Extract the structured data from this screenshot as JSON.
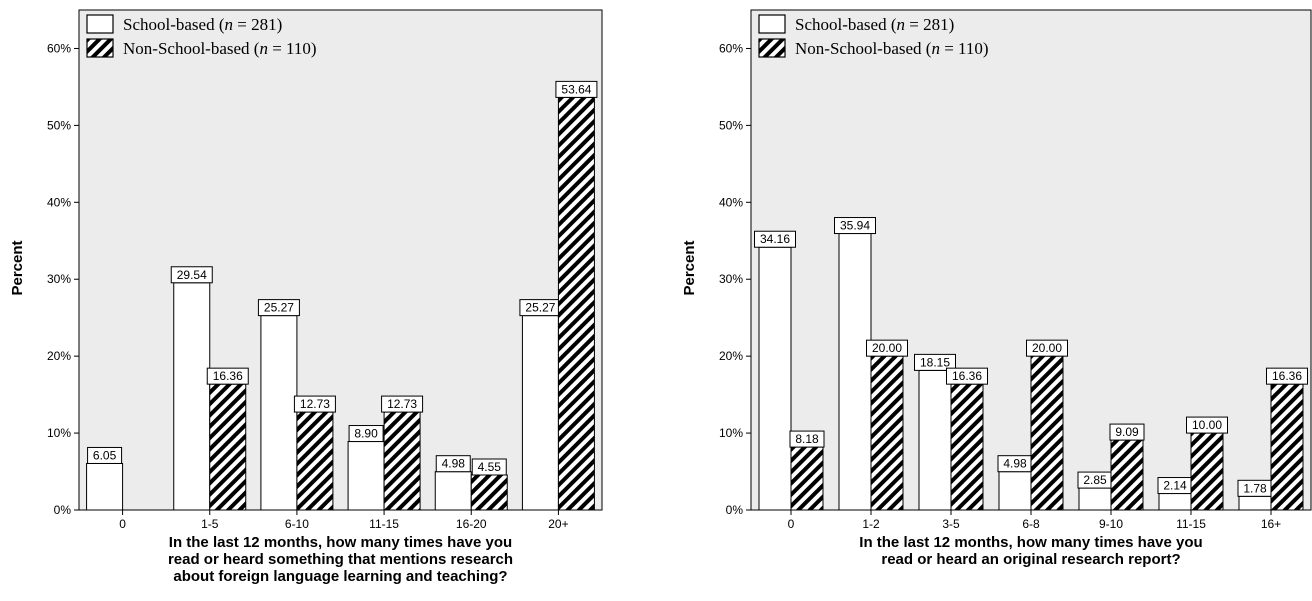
{
  "colors": {
    "plot_bg": "#ececec",
    "bar_fill": "#ffffff",
    "stroke": "#000000"
  },
  "chart_data": [
    {
      "type": "bar",
      "ylabel": "Percent",
      "xlabel": [
        "In the last 12 months, how many times have you",
        "read or heard something that mentions research",
        "about foreign language learning and teaching?"
      ],
      "ylim": [
        0,
        65
      ],
      "yticks": [
        "0%",
        "10%",
        "20%",
        "30%",
        "40%",
        "50%",
        "60%"
      ],
      "grid": false,
      "legend_position": "top-left",
      "categories": [
        "0",
        "1-5",
        "6-10",
        "11-15",
        "16-20",
        "20+"
      ],
      "series": [
        {
          "name": "School-based",
          "n_label": "n",
          "n_value": "= 281)",
          "pattern": "open",
          "values": [
            6.05,
            29.54,
            25.27,
            8.9,
            4.98,
            25.27
          ],
          "labels": [
            "6.05",
            "29.54",
            "25.27",
            "8.90",
            "4.98",
            "25.27"
          ]
        },
        {
          "name": "Non-School-based",
          "n_label": "n",
          "n_value": "= 110)",
          "pattern": "hatched",
          "values": [
            null,
            16.36,
            12.73,
            12.73,
            4.55,
            53.64
          ],
          "labels": [
            null,
            "16.36",
            "12.73",
            "12.73",
            "4.55",
            "53.64"
          ]
        }
      ]
    },
    {
      "type": "bar",
      "ylabel": "Percent",
      "xlabel": [
        "In the last 12 months, how many times have you",
        "read or heard an original research report?"
      ],
      "ylim": [
        0,
        65
      ],
      "yticks": [
        "0%",
        "10%",
        "20%",
        "30%",
        "40%",
        "50%",
        "60%"
      ],
      "grid": false,
      "legend_position": "top-left",
      "categories": [
        "0",
        "1-2",
        "3-5",
        "6-8",
        "9-10",
        "11-15",
        "16+"
      ],
      "series": [
        {
          "name": "School-based",
          "n_label": "n",
          "n_value": "= 281)",
          "pattern": "open",
          "values": [
            34.16,
            35.94,
            18.15,
            4.98,
            2.85,
            2.14,
            1.78
          ],
          "labels": [
            "34.16",
            "35.94",
            "18.15",
            "4.98",
            "2.85",
            "2.14",
            "1.78"
          ]
        },
        {
          "name": "Non-School-based",
          "n_label": "n",
          "n_value": "= 110)",
          "pattern": "hatched",
          "values": [
            8.18,
            20.0,
            16.36,
            20.0,
            9.09,
            10.0,
            16.36
          ],
          "labels": [
            "8.18",
            "20.00",
            "16.36",
            "20.00",
            "9.09",
            "10.00",
            "16.36"
          ]
        }
      ]
    }
  ]
}
